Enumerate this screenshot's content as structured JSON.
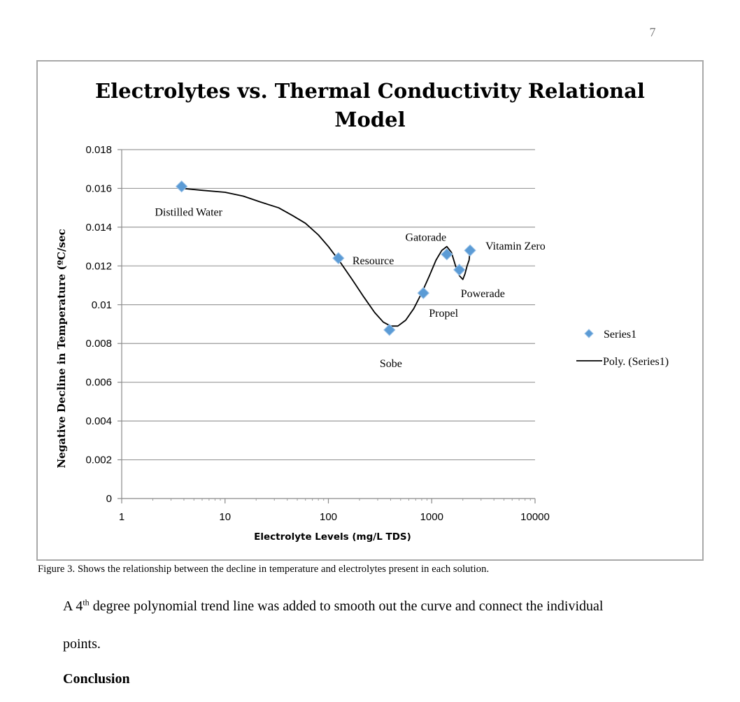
{
  "page": {
    "number": "7"
  },
  "chart_data": {
    "type": "scatter",
    "title_lines": [
      "Electrolytes vs. Thermal Conductivity Relational",
      "Model"
    ],
    "xlabel": "Electrolyte Levels (mg/L TDS)",
    "ylabel": "Negative Decline in Temperature (ºC/sec",
    "xscale": "log",
    "xlim": [
      1,
      10000
    ],
    "ylim": [
      0,
      0.018
    ],
    "grid": "horizontal",
    "legend_position": "right",
    "x_ticks": [
      1,
      10,
      100,
      1000,
      10000
    ],
    "x_tick_labels": [
      "1",
      "10",
      "100",
      "1000",
      "10000"
    ],
    "y_ticks": [
      0,
      0.002,
      0.004,
      0.006,
      0.008,
      0.01,
      0.012,
      0.014,
      0.016,
      0.018
    ],
    "y_tick_labels": [
      "0",
      "0.002",
      "0.004",
      "0.006",
      "0.008",
      "0.01",
      "0.012",
      "0.014",
      "0.016",
      "0.018"
    ],
    "series": [
      {
        "name": "Series1",
        "marker": "diamond",
        "color": "#5b9bd5",
        "points": [
          {
            "label": "Distilled Water",
            "x": 3.8,
            "y": 0.0161
          },
          {
            "label": "Resource",
            "x": 125,
            "y": 0.0124
          },
          {
            "label": "Sobe",
            "x": 390,
            "y": 0.0087
          },
          {
            "label": "Propel",
            "x": 830,
            "y": 0.0106
          },
          {
            "label": "Gatorade",
            "x": 1400,
            "y": 0.0126
          },
          {
            "label": "Powerade",
            "x": 1850,
            "y": 0.0118
          },
          {
            "label": "Vitamin Zero",
            "x": 2350,
            "y": 0.0128
          }
        ]
      }
    ],
    "trendline": {
      "name": "Poly. (Series1)",
      "type": "polynomial",
      "order": 4,
      "color": "#000000",
      "points": [
        [
          3.8,
          0.016
        ],
        [
          6,
          0.0159
        ],
        [
          10,
          0.0158
        ],
        [
          15,
          0.0156
        ],
        [
          22,
          0.0153
        ],
        [
          33,
          0.015
        ],
        [
          45,
          0.0146
        ],
        [
          60,
          0.0142
        ],
        [
          80,
          0.0136
        ],
        [
          100,
          0.013
        ],
        [
          130,
          0.0122
        ],
        [
          170,
          0.0113
        ],
        [
          220,
          0.0104
        ],
        [
          280,
          0.0096
        ],
        [
          340,
          0.0091
        ],
        [
          400,
          0.0089
        ],
        [
          470,
          0.0089
        ],
        [
          560,
          0.0092
        ],
        [
          670,
          0.0098
        ],
        [
          800,
          0.0106
        ],
        [
          950,
          0.0115
        ],
        [
          1100,
          0.0123
        ],
        [
          1250,
          0.0128
        ],
        [
          1400,
          0.013
        ],
        [
          1550,
          0.0127
        ],
        [
          1700,
          0.012
        ],
        [
          1850,
          0.0115
        ],
        [
          2000,
          0.0113
        ],
        [
          2100,
          0.0116
        ],
        [
          2200,
          0.012
        ],
        [
          2300,
          0.0123
        ],
        [
          2350,
          0.0128
        ]
      ]
    },
    "legend": [
      "Series1",
      "Poly. (Series1)"
    ]
  },
  "caption": "Figure 3.  Shows the relationship between the decline in temperature and electrolytes present in each solution.",
  "body": {
    "line1_pre": "A 4",
    "line1_sup": "th",
    "line1_post": " degree polynomial trend line was added to smooth out the curve and connect the individual",
    "line2": "points."
  },
  "heading": "Conclusion"
}
